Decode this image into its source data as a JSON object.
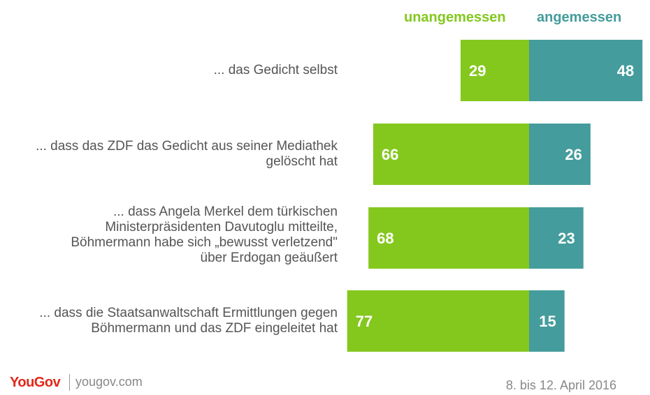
{
  "colors": {
    "negative": "#84c81e",
    "positive": "#459c9c",
    "label": "#555555",
    "value": "#ffffff"
  },
  "legend": {
    "negative": "unangemessen",
    "positive": "angemessen"
  },
  "chart_data": {
    "type": "bar",
    "orientation": "horizontal-diverging",
    "categories": [
      "... das Gedicht selbst",
      "... dass das ZDF das Gedicht aus seiner Mediathek\ngelöscht hat",
      "... dass Angela Merkel dem türkischen\nMinisterpräsidenten  Davutoglu mitteilte,\nBöhmermann habe sich „bewusst verletzend\"\nüber Erdogan geäußert",
      "... dass die Staatsanwaltschaft Ermittlungen gegen\nBöhmermann und das ZDF eingeleitet hat"
    ],
    "series": [
      {
        "name": "unangemessen",
        "values": [
          29,
          66,
          68,
          77
        ]
      },
      {
        "name": "angemessen",
        "values": [
          48,
          26,
          23,
          15
        ]
      }
    ]
  },
  "footer": {
    "brand": "YouGov",
    "site": "yougov.com",
    "date": "8. bis 12. April 2016"
  }
}
